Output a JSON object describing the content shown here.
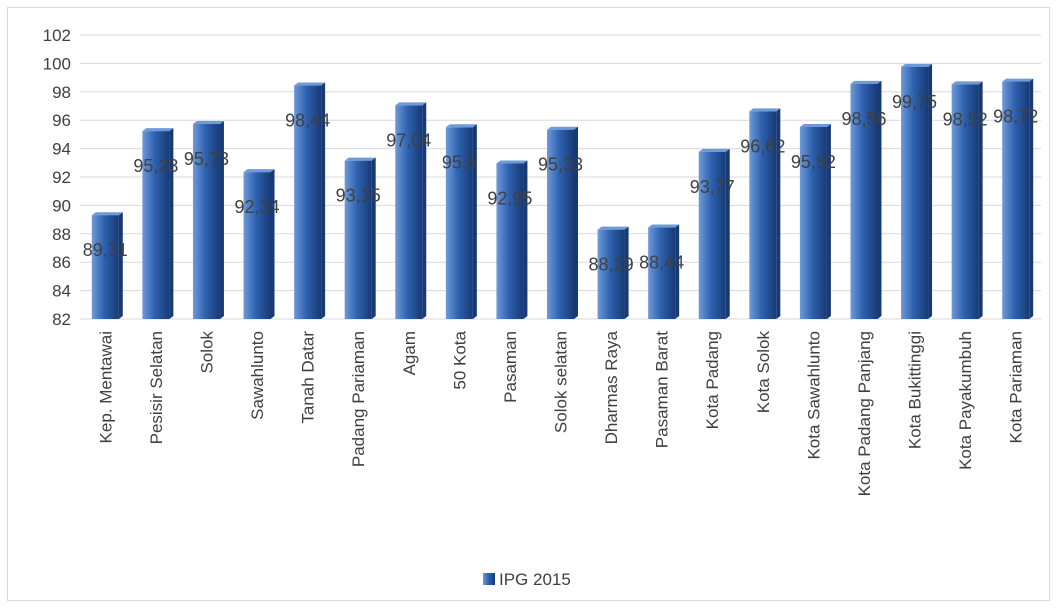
{
  "chart_data": {
    "type": "bar",
    "categories": [
      "Kep. Mentawai",
      "Pesisir Selatan",
      "Solok",
      "Sawahlunto",
      "Tanah Datar",
      "Padang Pariaman",
      "Agam",
      "50 Kota",
      "Pasaman",
      "Solok selatan",
      "Dharmas Raya",
      "Pasaman Barat",
      "Kota Padang",
      "Kota Solok",
      "Kota Sawahlunto",
      "Kota Padang Panjang",
      "Kota Bukittinggi",
      "Kota Payakumbuh",
      "Kota Pariaman"
    ],
    "series": [
      {
        "name": "IPG 2015",
        "values": [
          89.31,
          95.23,
          95.73,
          92.34,
          98.44,
          93.15,
          97.04,
          95.5,
          92.95,
          95.33,
          88.29,
          88.44,
          93.77,
          96.62,
          95.52,
          98.56,
          99.75,
          98.52,
          98.72
        ],
        "labels": [
          "89,31",
          "95,23",
          "95,73",
          "92,34",
          "98,44",
          "93,15",
          "97,04",
          "95,5",
          "92,95",
          "95,33",
          "88,29",
          "88,44",
          "93,77",
          "96,62",
          "95,52",
          "98,56",
          "99,75",
          "98,52",
          "98,72"
        ]
      }
    ],
    "ylim": [
      82,
      102
    ],
    "yticks": [
      82,
      84,
      86,
      88,
      90,
      92,
      94,
      96,
      98,
      100,
      102
    ],
    "grid": true,
    "legend_position": "bottom",
    "colors": {
      "bar": "#2f62b0",
      "bar_dark": "#173a75",
      "bar_light": "#6f9ad9",
      "grid": "#d9d9d9",
      "text": "#404040"
    }
  }
}
